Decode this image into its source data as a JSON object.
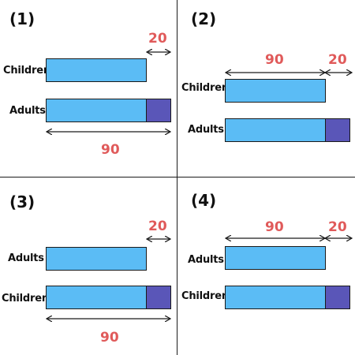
{
  "colors": {
    "short_bar": "#5bbcf5",
    "extra_segment": "#5a56b8",
    "measure_text": "#e05a5a",
    "border": "#1a1a1a"
  },
  "panels": [
    {
      "number": "(1)",
      "top_label": "Children",
      "bottom_label": "Adults",
      "measure_big": "90",
      "measure_small": "20"
    },
    {
      "number": "(2)",
      "top_label": "Children",
      "bottom_label": "Adults",
      "measure_big": "90",
      "measure_small": "20"
    },
    {
      "number": "(3)",
      "top_label": "Adults",
      "bottom_label": "Children",
      "measure_big": "90",
      "measure_small": "20"
    },
    {
      "number": "(4)",
      "top_label": "Adults",
      "bottom_label": "Children",
      "measure_big": "90",
      "measure_small": "20"
    }
  ]
}
